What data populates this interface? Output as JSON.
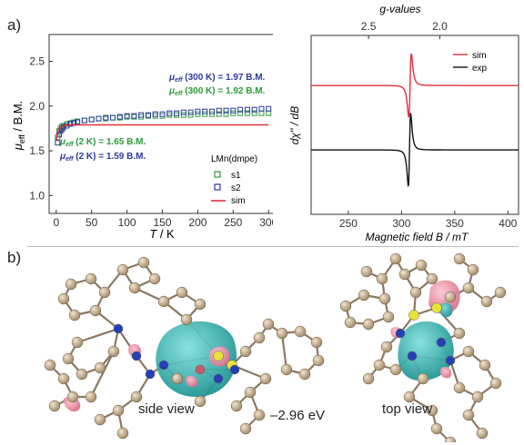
{
  "panel_a_label": "a)",
  "panel_b_label": "b)",
  "chart_data": [
    {
      "type": "scatter",
      "name": "mu_eff vs T",
      "xlabel_var": "T",
      "xlabel_unit": " / K",
      "ylabel_var": "μ",
      "ylabel_sub": "eff",
      "ylabel_unit": " / B.M.",
      "xlim": [
        -10,
        310
      ],
      "ylim": [
        0.8,
        2.8
      ],
      "xticks": [
        0,
        50,
        100,
        150,
        200,
        250,
        300
      ],
      "yticks": [
        1.0,
        1.5,
        2.0,
        2.5
      ],
      "legend_title": "LMn(dmpe)",
      "legend_placement": "bottom-right",
      "annotations": [
        {
          "label": "μ",
          "sub": "eff",
          "rest": " (300 K) = 1.97 B.M.",
          "color": "#2b3a9c"
        },
        {
          "label": "μ",
          "sub": "eff",
          "rest": " (300 K) = 1.92 B.M.",
          "color": "#2e9a3c"
        },
        {
          "label": "μ",
          "sub": "eff",
          "rest": " (2 K) = 1.65 B.M.",
          "color": "#2e9a3c"
        },
        {
          "label": "μ",
          "sub": "eff",
          "rest": " (2 K) = 1.59 B.M.",
          "color": "#2b3a9c"
        }
      ],
      "series": [
        {
          "name": "s1",
          "color": "#2e9a3c",
          "marker": "open-square",
          "x": [
            2,
            4,
            6,
            8,
            10,
            15,
            20,
            25,
            30,
            40,
            50,
            60,
            70,
            80,
            90,
            100,
            110,
            120,
            130,
            140,
            150,
            160,
            170,
            180,
            190,
            200,
            210,
            220,
            230,
            240,
            250,
            260,
            270,
            280,
            290,
            300
          ],
          "y": [
            1.65,
            1.72,
            1.75,
            1.77,
            1.78,
            1.8,
            1.81,
            1.82,
            1.83,
            1.84,
            1.85,
            1.86,
            1.86,
            1.87,
            1.87,
            1.88,
            1.88,
            1.88,
            1.89,
            1.89,
            1.89,
            1.9,
            1.9,
            1.9,
            1.9,
            1.91,
            1.91,
            1.91,
            1.91,
            1.91,
            1.92,
            1.92,
            1.92,
            1.92,
            1.92,
            1.92
          ]
        },
        {
          "name": "s2",
          "color": "#2b3a9c",
          "marker": "open-square",
          "x": [
            2,
            4,
            6,
            8,
            10,
            15,
            20,
            25,
            30,
            40,
            50,
            60,
            70,
            80,
            90,
            100,
            110,
            120,
            130,
            140,
            150,
            160,
            170,
            180,
            190,
            200,
            210,
            220,
            230,
            240,
            250,
            260,
            270,
            280,
            290,
            300
          ],
          "y": [
            1.59,
            1.68,
            1.72,
            1.74,
            1.76,
            1.78,
            1.8,
            1.81,
            1.82,
            1.84,
            1.85,
            1.86,
            1.87,
            1.87,
            1.88,
            1.89,
            1.89,
            1.9,
            1.9,
            1.91,
            1.91,
            1.92,
            1.92,
            1.93,
            1.93,
            1.94,
            1.94,
            1.94,
            1.95,
            1.95,
            1.95,
            1.96,
            1.96,
            1.96,
            1.97,
            1.97
          ]
        },
        {
          "name": "sim",
          "color": "#e0303b",
          "marker": "line",
          "x": [
            0,
            2,
            4,
            6,
            8,
            10,
            15,
            20,
            30,
            300
          ],
          "y": [
            1.62,
            1.7,
            1.74,
            1.76,
            1.77,
            1.78,
            1.79,
            1.79,
            1.79,
            1.79
          ]
        }
      ]
    },
    {
      "type": "line",
      "name": "EPR spectrum",
      "xlabel": "Magnetic field B / mT",
      "ylabel": "dχ'' / dB",
      "top_axis_label": "g-values",
      "top_ticks": [
        {
          "label": "2.5",
          "B": 269
        },
        {
          "label": "2.0",
          "B": 336
        }
      ],
      "xlim": [
        215,
        410
      ],
      "xticks": [
        250,
        300,
        350,
        400
      ],
      "legend_placement": "top-right",
      "series": [
        {
          "name": "sim",
          "color": "#e0303b",
          "baseline": 0.72,
          "center": 308,
          "width": 3.6,
          "amplitude": 0.28
        },
        {
          "name": "exp",
          "color": "#111111",
          "baseline": 0.36,
          "center": 307.5,
          "width": 3.3,
          "amplitude": 0.32
        }
      ]
    }
  ],
  "panel_b": {
    "side_view_label": "side view",
    "energy_label": "–2.96 eV",
    "top_view_label": "top view",
    "colors": {
      "atom_c": "#c9b08d",
      "atom_n": "#2340b8",
      "atom_p": "#e8e23a",
      "lobe_pos": "#2bb3b1",
      "lobe_neg": "#e88aa0"
    }
  }
}
